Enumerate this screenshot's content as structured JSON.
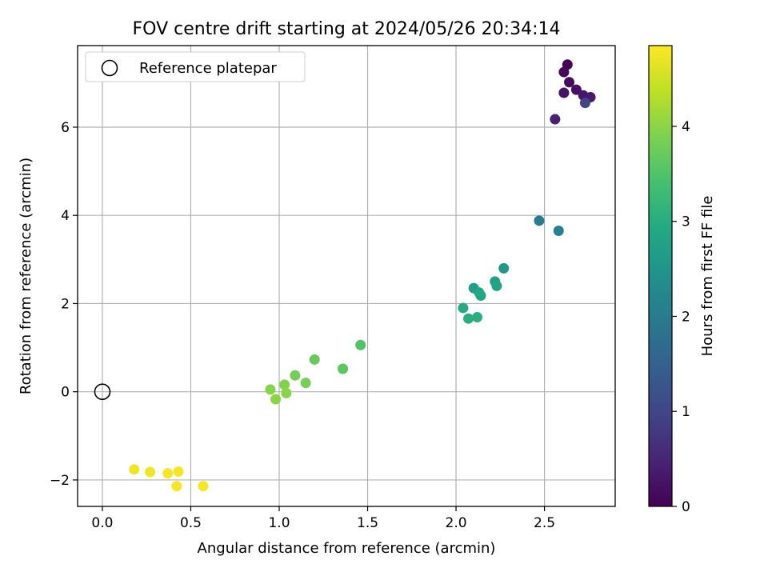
{
  "chart_data": {
    "type": "scatter",
    "title": "FOV centre drift starting at 2024/05/26 20:34:14",
    "xlabel": "Angular distance from reference (arcmin)",
    "ylabel": "Rotation from reference (arcmin)",
    "xlim": [
      -0.14,
      2.9
    ],
    "ylim": [
      -2.6,
      7.85
    ],
    "x_ticks": [
      "0.0",
      "0.5",
      "1.0",
      "1.5",
      "2.0",
      "2.5"
    ],
    "y_ticks": [
      "−2",
      "0",
      "2",
      "4",
      "6"
    ],
    "grid": true,
    "legend": {
      "placement": "top-left",
      "entries": [
        "Reference platepar"
      ]
    },
    "reference_point": {
      "x": 0,
      "y": 0
    },
    "colorbar": {
      "label": "Hours from first FF file",
      "range": [
        0,
        4.85
      ],
      "ticks": [
        "0",
        "1",
        "2",
        "3",
        "4"
      ],
      "colormap": "viridis"
    },
    "points": [
      {
        "x": 2.63,
        "y": 7.42,
        "h": 0.05
      },
      {
        "x": 2.61,
        "y": 7.25,
        "h": 0.1
      },
      {
        "x": 2.64,
        "y": 7.02,
        "h": 0.15
      },
      {
        "x": 2.68,
        "y": 6.85,
        "h": 0.2
      },
      {
        "x": 2.61,
        "y": 6.78,
        "h": 0.25
      },
      {
        "x": 2.72,
        "y": 6.72,
        "h": 0.3
      },
      {
        "x": 2.76,
        "y": 6.68,
        "h": 0.35
      },
      {
        "x": 2.56,
        "y": 6.18,
        "h": 0.45
      },
      {
        "x": 2.73,
        "y": 6.55,
        "h": 1.0
      },
      {
        "x": 2.47,
        "y": 3.88,
        "h": 2.0
      },
      {
        "x": 2.58,
        "y": 3.65,
        "h": 2.1
      },
      {
        "x": 2.27,
        "y": 2.8,
        "h": 2.6
      },
      {
        "x": 2.1,
        "y": 2.35,
        "h": 2.7
      },
      {
        "x": 2.22,
        "y": 2.5,
        "h": 2.75
      },
      {
        "x": 2.23,
        "y": 2.4,
        "h": 2.8
      },
      {
        "x": 2.13,
        "y": 2.25,
        "h": 2.85
      },
      {
        "x": 2.14,
        "y": 2.18,
        "h": 2.9
      },
      {
        "x": 2.04,
        "y": 1.9,
        "h": 2.95
      },
      {
        "x": 2.07,
        "y": 1.66,
        "h": 3.0
      },
      {
        "x": 2.12,
        "y": 1.69,
        "h": 3.05
      },
      {
        "x": 1.46,
        "y": 1.06,
        "h": 3.5
      },
      {
        "x": 1.36,
        "y": 0.52,
        "h": 3.6
      },
      {
        "x": 1.2,
        "y": 0.73,
        "h": 3.7
      },
      {
        "x": 1.09,
        "y": 0.37,
        "h": 3.8
      },
      {
        "x": 1.15,
        "y": 0.2,
        "h": 3.85
      },
      {
        "x": 1.03,
        "y": 0.16,
        "h": 3.9
      },
      {
        "x": 0.95,
        "y": 0.05,
        "h": 3.95
      },
      {
        "x": 1.04,
        "y": -0.03,
        "h": 3.98
      },
      {
        "x": 0.98,
        "y": -0.17,
        "h": 4.0
      },
      {
        "x": 0.18,
        "y": -1.76,
        "h": 4.75
      },
      {
        "x": 0.27,
        "y": -1.82,
        "h": 4.76
      },
      {
        "x": 0.37,
        "y": -1.85,
        "h": 4.77
      },
      {
        "x": 0.43,
        "y": -1.81,
        "h": 4.78
      },
      {
        "x": 0.42,
        "y": -2.14,
        "h": 4.79
      },
      {
        "x": 0.57,
        "y": -2.14,
        "h": 4.8
      }
    ]
  }
}
